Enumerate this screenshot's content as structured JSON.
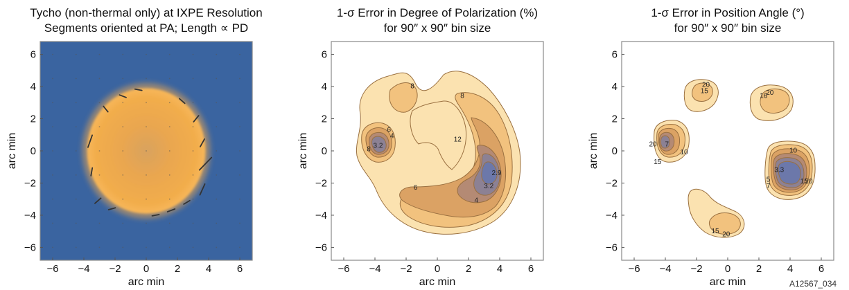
{
  "figure_id": "A12567_034",
  "colors": {
    "map_background": "#3a64a0",
    "emission": "#f1a94a",
    "contour_levels": [
      "#fbe2b0",
      "#f2c27e",
      "#dba264",
      "#b48a74",
      "#8c8194",
      "#6c78aa"
    ],
    "contour_line": "#9a7040",
    "segment": "#333333"
  },
  "chart_data": [
    {
      "type": "image_map",
      "title_lines": [
        "Tycho (non-thermal only) at IXPE Resolution",
        "Segments oriented at PA; Length ∝ PD"
      ],
      "xlabel": "arc min",
      "ylabel": "arc min",
      "xlim": [
        -6.8,
        6.8
      ],
      "ylim": [
        -6.8,
        6.8
      ],
      "xticks": [
        -6,
        -4,
        -2,
        0,
        2,
        4,
        6
      ],
      "yticks": [
        -6,
        -4,
        -2,
        0,
        2,
        4,
        6
      ],
      "remnant": {
        "center": [
          0,
          0
        ],
        "radius_x": 3.8,
        "radius_y": 3.9
      },
      "polarization_segments": [
        {
          "x": -3.6,
          "y": 0.6,
          "angle_deg": 70,
          "length": 0.8
        },
        {
          "x": -3.5,
          "y": -1.3,
          "angle_deg": 80,
          "length": 0.5
        },
        {
          "x": -3.1,
          "y": -3.1,
          "angle_deg": 40,
          "length": 0.5
        },
        {
          "x": -2.2,
          "y": -3.6,
          "angle_deg": 15,
          "length": 0.45
        },
        {
          "x": -1.5,
          "y": 3.4,
          "angle_deg": -20,
          "length": 0.45
        },
        {
          "x": -0.5,
          "y": 3.8,
          "angle_deg": -10,
          "length": 0.45
        },
        {
          "x": 0.6,
          "y": -4.0,
          "angle_deg": 10,
          "length": 0.45
        },
        {
          "x": 1.6,
          "y": -3.7,
          "angle_deg": 20,
          "length": 0.5
        },
        {
          "x": 3.2,
          "y": 2.0,
          "angle_deg": 50,
          "length": 0.5
        },
        {
          "x": 3.6,
          "y": 0.5,
          "angle_deg": 60,
          "length": 0.55
        },
        {
          "x": 3.8,
          "y": -0.8,
          "angle_deg": 45,
          "length": 1.1
        },
        {
          "x": 3.6,
          "y": -2.4,
          "angle_deg": 65,
          "length": 0.75
        },
        {
          "x": 2.6,
          "y": -3.2,
          "angle_deg": 30,
          "length": 0.45
        },
        {
          "x": 2.3,
          "y": 3.1,
          "angle_deg": -40,
          "length": 0.45
        },
        {
          "x": -2.6,
          "y": 2.6,
          "angle_deg": -50,
          "length": 0.45
        }
      ]
    },
    {
      "type": "contour",
      "title_lines": [
        "1-σ Error in Degree of Polarization (%)",
        "for 90″ x 90″ bin size"
      ],
      "xlabel": "arc min",
      "ylabel": "arc min",
      "xlim": [
        -6.8,
        6.8
      ],
      "ylim": [
        -6.8,
        6.8
      ],
      "xticks": [
        -6,
        -4,
        -2,
        0,
        2,
        4,
        6
      ],
      "yticks": [
        -6,
        -4,
        -2,
        0,
        2,
        4,
        6
      ],
      "contour_labels": [
        {
          "x": -1.6,
          "y": 4.0,
          "text": "8"
        },
        {
          "x": 1.6,
          "y": 3.4,
          "text": "8"
        },
        {
          "x": -3.1,
          "y": 1.3,
          "text": "6"
        },
        {
          "x": -2.9,
          "y": 0.9,
          "text": "4"
        },
        {
          "x": -3.8,
          "y": 0.3,
          "text": "3.2"
        },
        {
          "x": -4.4,
          "y": 0.1,
          "text": "8"
        },
        {
          "x": 1.3,
          "y": 0.7,
          "text": "12"
        },
        {
          "x": 3.8,
          "y": -1.4,
          "text": "2.9"
        },
        {
          "x": 3.3,
          "y": -2.2,
          "text": "3.2"
        },
        {
          "x": -1.4,
          "y": -2.3,
          "text": "6"
        },
        {
          "x": 2.5,
          "y": -3.1,
          "text": "4"
        }
      ]
    },
    {
      "type": "contour",
      "title_lines": [
        "1-σ Error in Position Angle (°)",
        "for 90″ x 90″ bin size"
      ],
      "xlabel": "arc min",
      "ylabel": "arc min",
      "xlim": [
        -6.8,
        6.8
      ],
      "ylim": [
        -6.8,
        6.8
      ],
      "xticks": [
        -6,
        -4,
        -2,
        0,
        2,
        4,
        6
      ],
      "yticks": [
        -6,
        -4,
        -2,
        0,
        2,
        4,
        6
      ],
      "contour_labels": [
        {
          "x": -1.4,
          "y": 4.1,
          "text": "20"
        },
        {
          "x": -1.5,
          "y": 3.7,
          "text": "15"
        },
        {
          "x": 2.7,
          "y": 3.6,
          "text": "20"
        },
        {
          "x": 2.3,
          "y": 3.4,
          "text": "16"
        },
        {
          "x": -4.8,
          "y": 0.4,
          "text": "20"
        },
        {
          "x": -3.9,
          "y": 0.4,
          "text": "7"
        },
        {
          "x": -2.8,
          "y": -0.1,
          "text": "10"
        },
        {
          "x": -4.5,
          "y": -0.7,
          "text": "15"
        },
        {
          "x": 4.2,
          "y": 0.0,
          "text": "10"
        },
        {
          "x": 3.3,
          "y": -1.2,
          "text": "3.3"
        },
        {
          "x": 2.6,
          "y": -1.8,
          "text": "5"
        },
        {
          "x": 2.6,
          "y": -2.2,
          "text": "7"
        },
        {
          "x": 4.9,
          "y": -1.9,
          "text": "15"
        },
        {
          "x": 5.2,
          "y": -1.9,
          "text": "20"
        },
        {
          "x": -0.8,
          "y": -5.0,
          "text": "15"
        },
        {
          "x": -0.1,
          "y": -5.2,
          "text": "20"
        }
      ]
    }
  ]
}
